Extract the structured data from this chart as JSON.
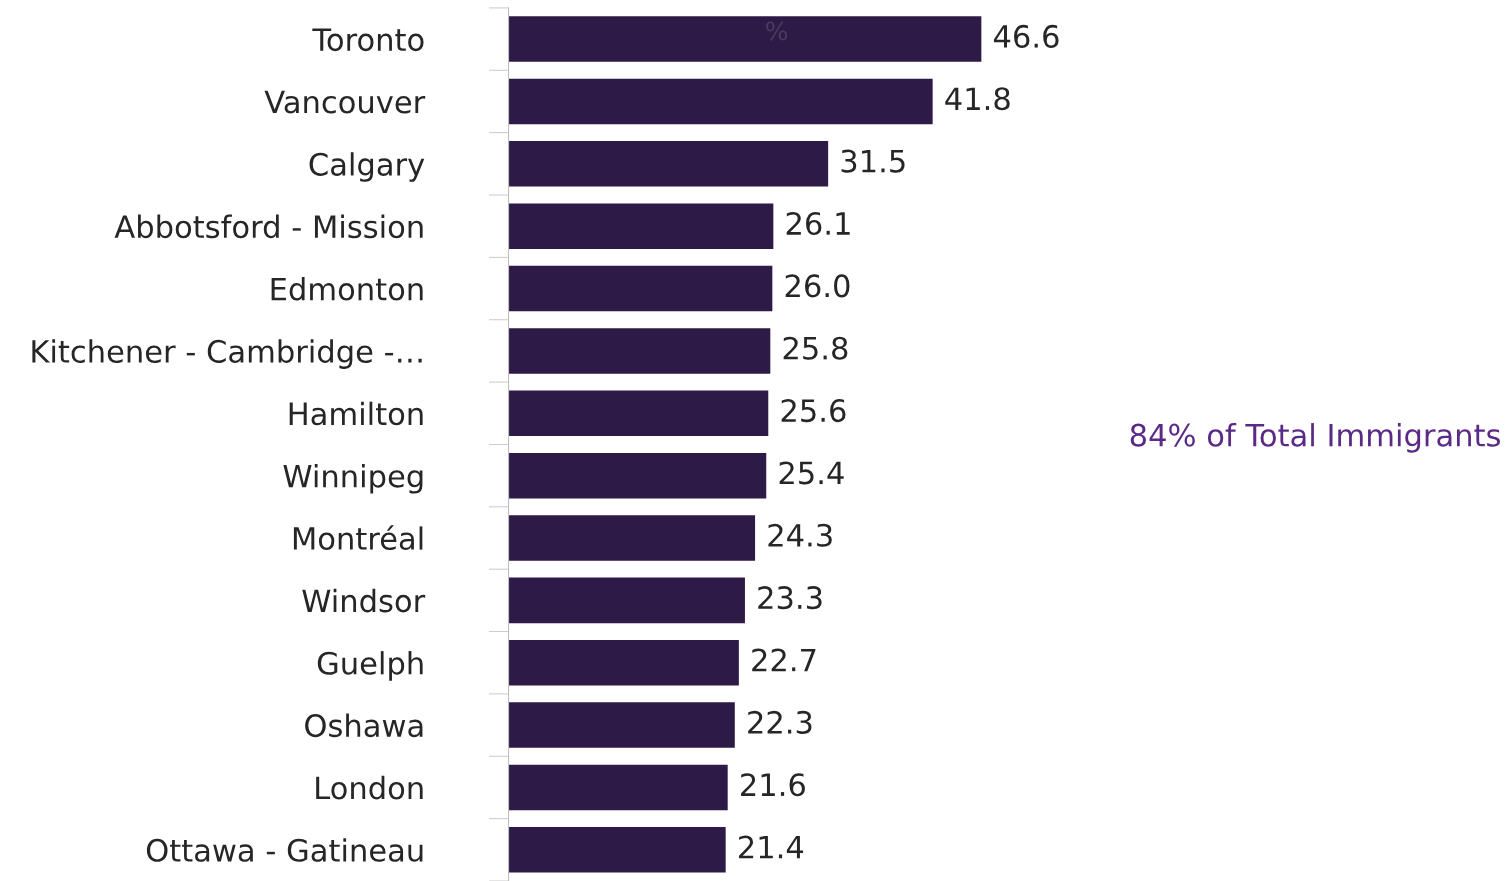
{
  "chart_data": {
    "type": "bar",
    "orientation": "horizontal",
    "xlabel": "%",
    "categories": [
      "Toronto",
      "Vancouver",
      "Calgary",
      "Abbotsford - Mission",
      "Edmonton",
      "Kitchener - Cambridge -…",
      "Hamilton",
      "Winnipeg",
      "Montréal",
      "Windsor",
      "Guelph",
      "Oshawa",
      "London",
      "Ottawa - Gatineau"
    ],
    "values": [
      46.6,
      41.8,
      31.5,
      26.1,
      26.0,
      25.8,
      25.6,
      25.4,
      24.3,
      23.3,
      22.7,
      22.3,
      21.6,
      21.4
    ],
    "value_labels": [
      "46.6",
      "41.8",
      "31.5",
      "26.1",
      "26.0",
      "25.8",
      "25.6",
      "25.4",
      "24.3",
      "23.3",
      "22.7",
      "22.3",
      "21.6",
      "21.4"
    ],
    "color": "#2e1a47",
    "grid": false,
    "legend": false,
    "annotations": [
      "84% of Total Immigrants"
    ]
  }
}
